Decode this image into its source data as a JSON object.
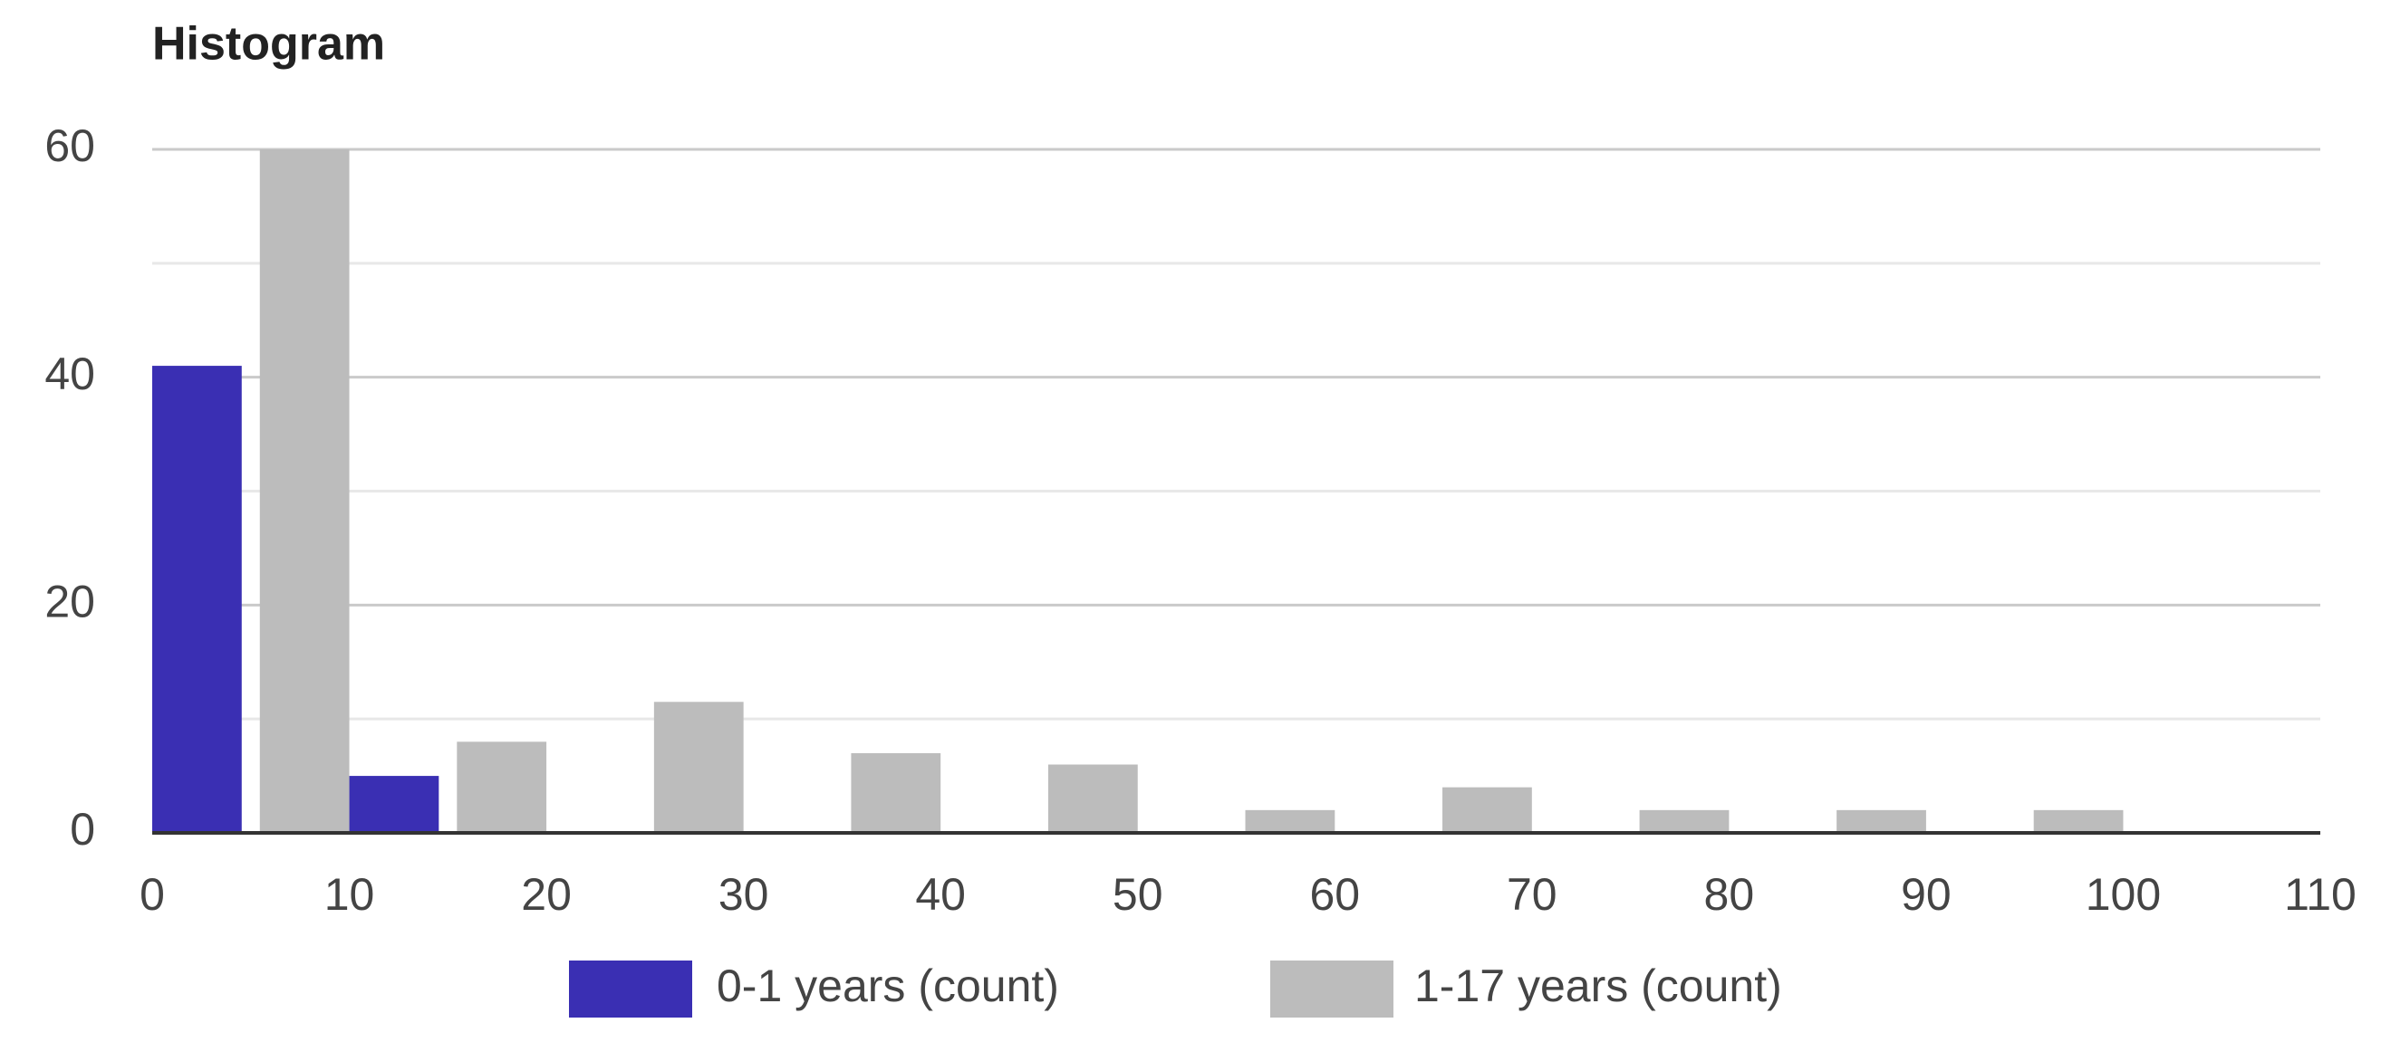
{
  "chart_data": {
    "type": "histogram",
    "title": "Histogram",
    "bins": [
      0,
      10,
      20,
      30,
      40,
      50,
      60,
      70,
      80,
      90,
      100,
      110
    ],
    "series": [
      {
        "name": "0-1 years (count)",
        "color": "#3a2fb3",
        "values": [
          41,
          5,
          0,
          0,
          0,
          0,
          0,
          0,
          0,
          0,
          0
        ]
      },
      {
        "name": "1-17 years (count)",
        "color": "#bcbcbc",
        "values": [
          60,
          8,
          11.5,
          7,
          6,
          2,
          4,
          2,
          2,
          2,
          0
        ]
      }
    ],
    "xlim": [
      0,
      110
    ],
    "xticks": [
      0,
      10,
      20,
      30,
      40,
      50,
      60,
      70,
      80,
      90,
      100,
      110
    ],
    "ylim": [
      0,
      60
    ],
    "yticks": [
      0,
      20,
      40,
      60
    ],
    "yminor": [
      10,
      30,
      50
    ],
    "grid": true,
    "legend": "bottom"
  }
}
